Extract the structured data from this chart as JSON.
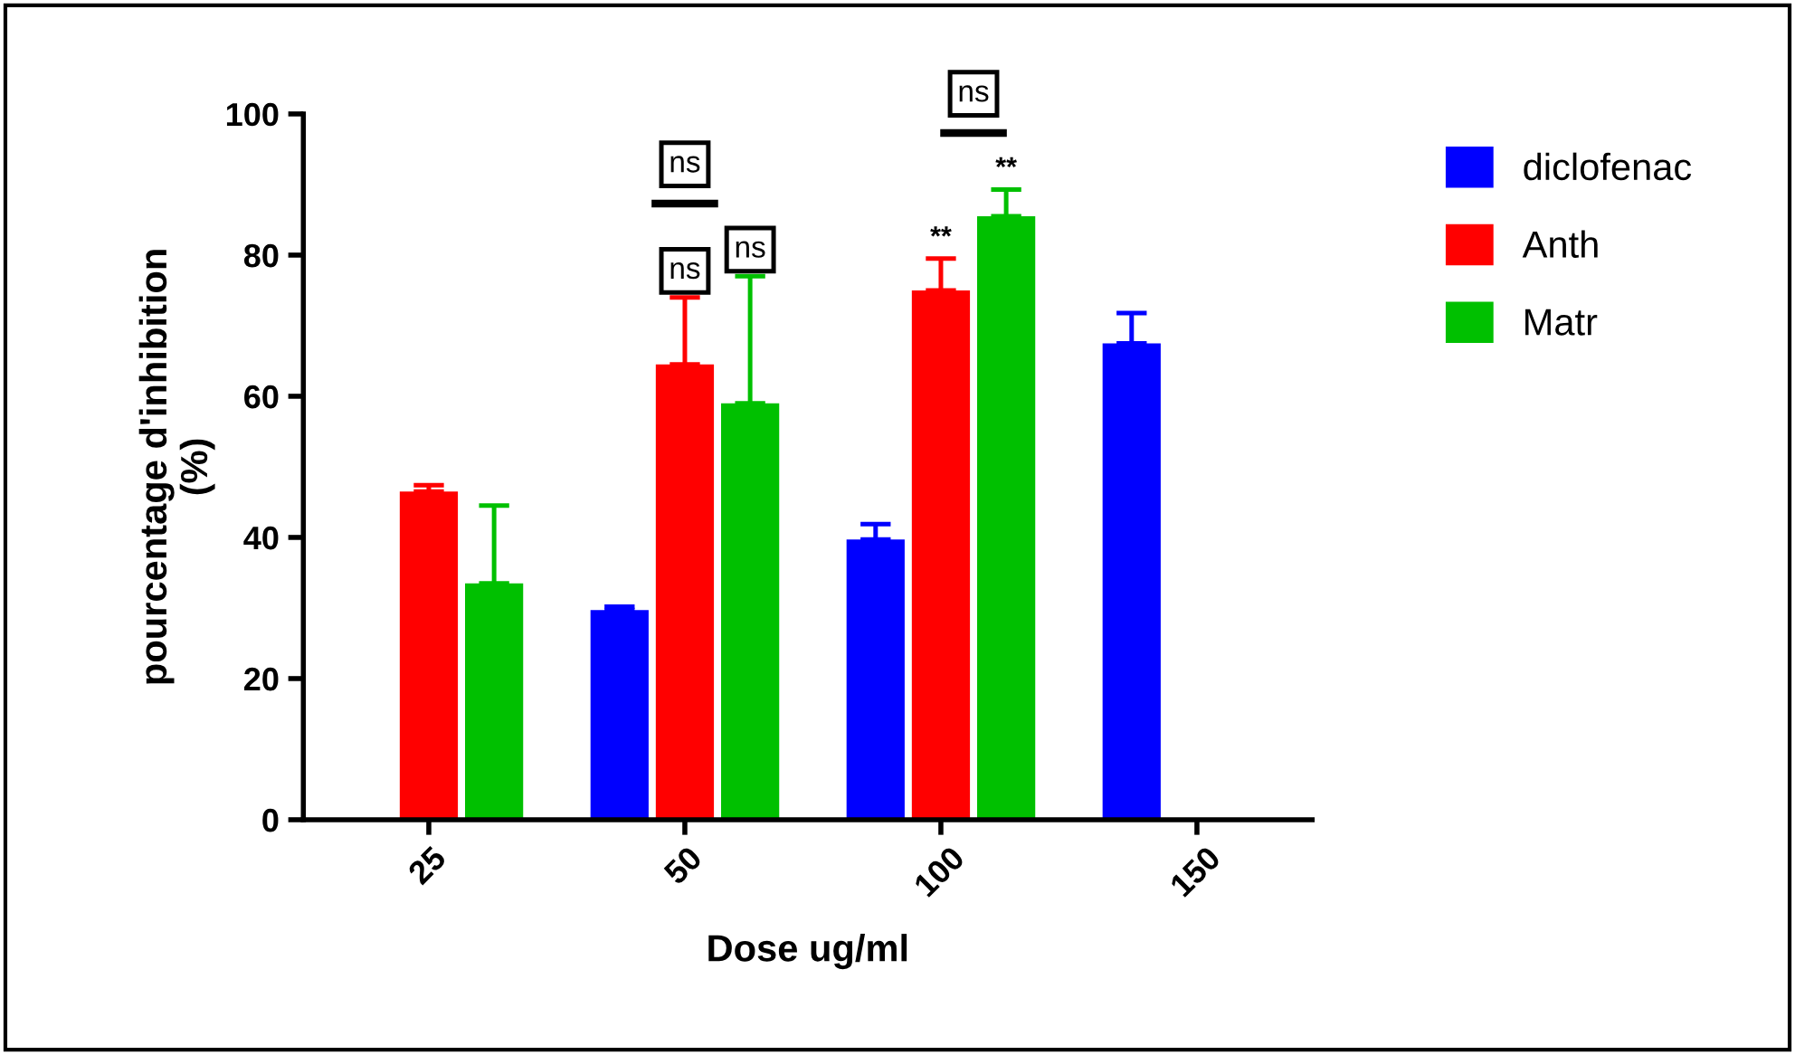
{
  "chart_data": {
    "type": "bar",
    "xlabel": "Dose ug/ml",
    "ylabel": "pourcentage d'inhibition\n(%)",
    "categories": [
      "25",
      "50",
      "100",
      "150"
    ],
    "series": [
      {
        "name": "diclofenac",
        "color": "#0000ff",
        "values": [
          null,
          29.7,
          39.7,
          67.5
        ],
        "errors": [
          null,
          0.5,
          2.2,
          4.3
        ]
      },
      {
        "name": "Anth",
        "color": "#ff0000",
        "values": [
          46.5,
          64.5,
          75,
          null
        ],
        "errors": [
          0.9,
          9.5,
          4.5,
          null
        ]
      },
      {
        "name": "Matr",
        "color": "#00c000",
        "values": [
          33.5,
          59,
          85.5,
          null
        ],
        "errors": [
          11,
          18,
          3.8,
          null
        ]
      }
    ],
    "ylim": [
      0,
      100
    ],
    "yticks": [
      0,
      20,
      40,
      60,
      80,
      100
    ],
    "grid": false,
    "legend": "top right",
    "annotations": [
      "ns",
      "ns",
      "ns",
      "ns",
      "**",
      "**"
    ]
  }
}
